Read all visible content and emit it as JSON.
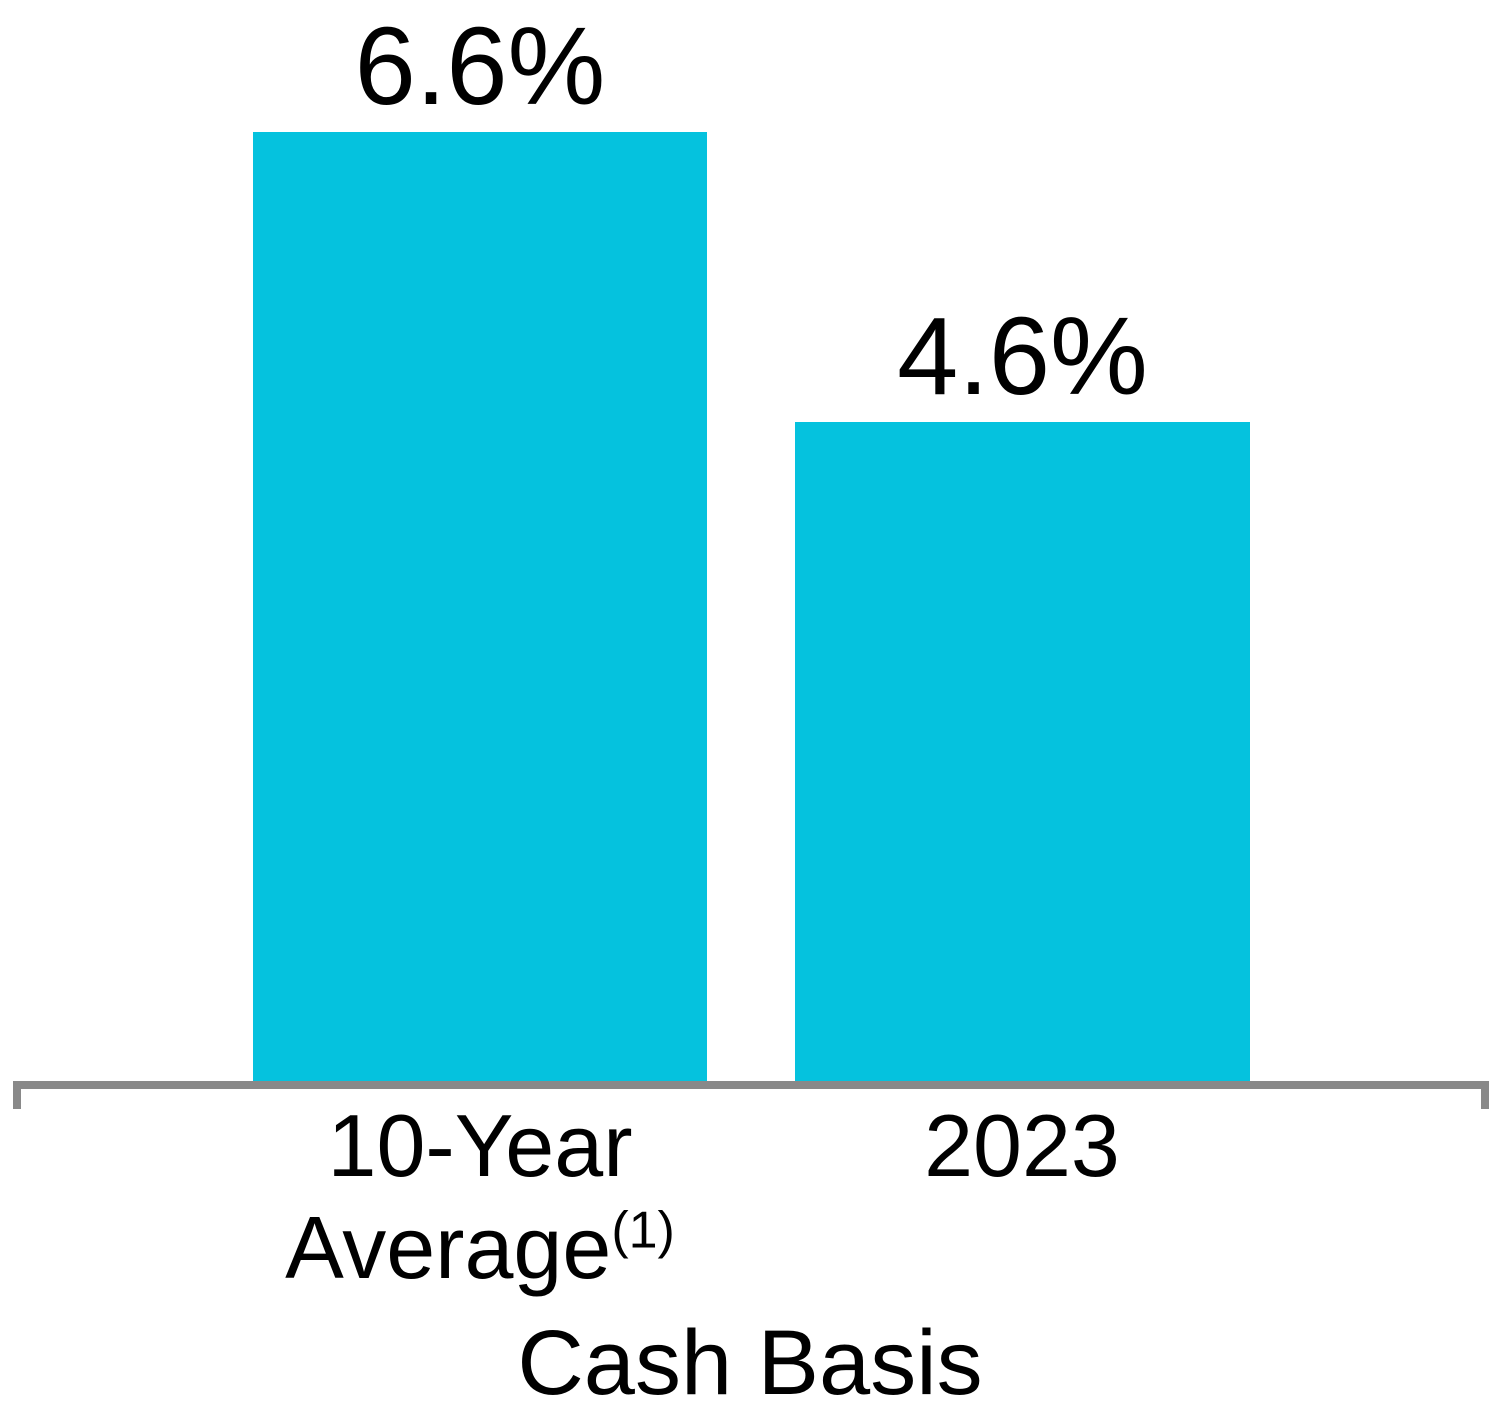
{
  "chart_data": {
    "type": "bar",
    "title": "",
    "xlabel": "Cash Basis",
    "ylabel": "",
    "categories": [
      "10-Year Average(1)",
      "2023"
    ],
    "values": [
      6.6,
      4.6
    ],
    "value_labels": [
      "6.6%",
      "4.6%"
    ],
    "x_labels": [
      {
        "lines": [
          "10-Year",
          "Average"
        ],
        "superscript": "(1)"
      },
      {
        "lines": [
          "2023"
        ],
        "superscript": ""
      }
    ],
    "ylim": [
      0,
      7.5
    ],
    "grid": false,
    "legend": false,
    "bar_color": "#05C2DE",
    "axis_color": "#898989",
    "text_color": "#000000",
    "background": "#FFFFFF"
  }
}
